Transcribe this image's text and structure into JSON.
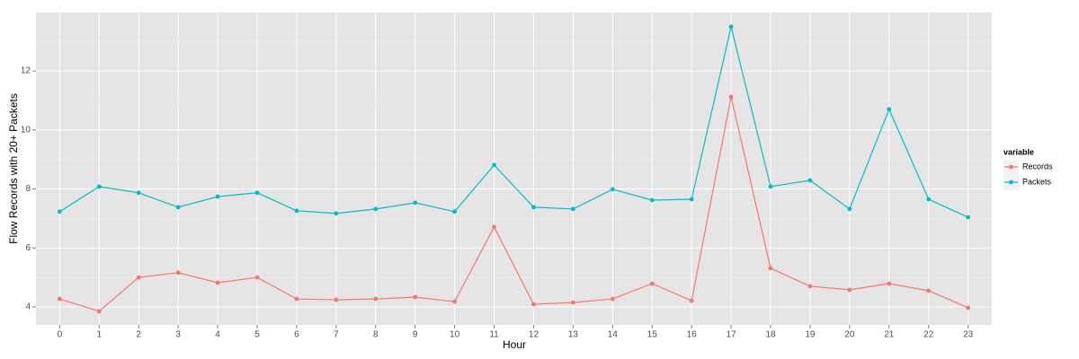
{
  "chart_data": {
    "type": "line",
    "x_label": "Hour",
    "y_label": "Flow Records with 20+ Packets",
    "legend_title": "variable",
    "legend_position": "right",
    "x": [
      0,
      1,
      2,
      3,
      4,
      5,
      6,
      7,
      8,
      9,
      10,
      11,
      12,
      13,
      14,
      15,
      16,
      17,
      18,
      19,
      20,
      21,
      22,
      23
    ],
    "xlim": [
      -0.6,
      23.6
    ],
    "xticks": [
      0,
      1,
      2,
      3,
      4,
      5,
      6,
      7,
      8,
      9,
      10,
      11,
      12,
      13,
      14,
      15,
      16,
      17,
      18,
      19,
      20,
      21,
      22,
      23
    ],
    "ylim": [
      3.39,
      13.98
    ],
    "yticks": [
      4,
      6,
      8,
      10,
      12
    ],
    "grid": true,
    "series": [
      {
        "name": "Records",
        "color": "#F8766D",
        "values": [
          4.27,
          3.85,
          5.0,
          5.16,
          4.82,
          5.0,
          4.27,
          4.24,
          4.27,
          4.33,
          4.18,
          6.71,
          4.09,
          4.15,
          4.27,
          4.79,
          4.21,
          11.12,
          5.31,
          4.7,
          4.58,
          4.79,
          4.55,
          3.97
        ]
      },
      {
        "name": "Packets",
        "color": "#00BFC4",
        "values": [
          7.23,
          8.08,
          7.87,
          7.38,
          7.74,
          7.87,
          7.26,
          7.17,
          7.32,
          7.53,
          7.23,
          8.81,
          7.38,
          7.32,
          7.99,
          7.62,
          7.65,
          13.5,
          8.08,
          8.29,
          7.32,
          10.7,
          7.65,
          7.04
        ]
      }
    ]
  }
}
